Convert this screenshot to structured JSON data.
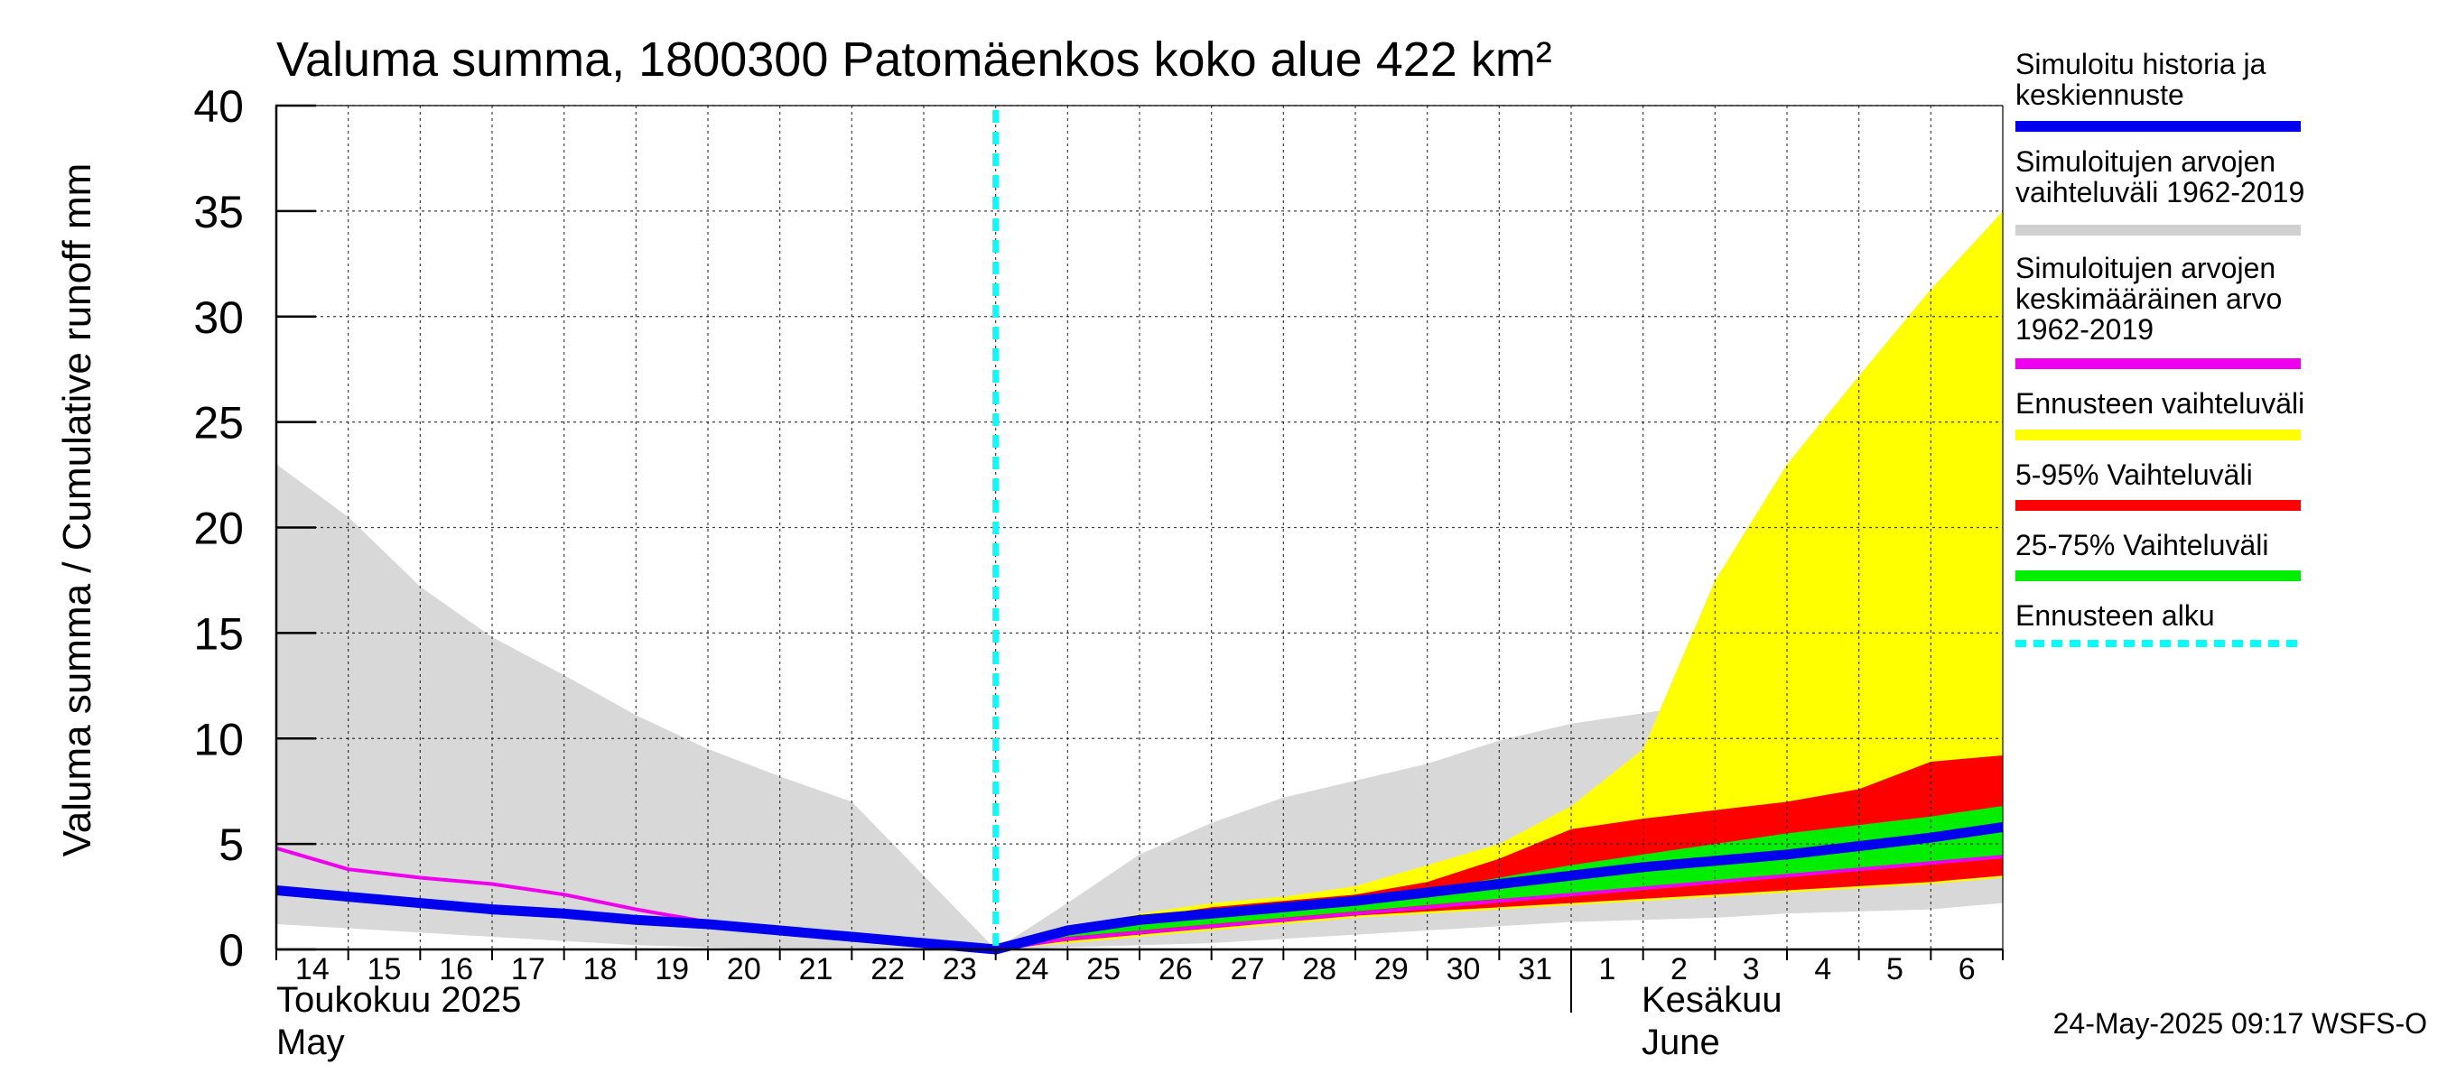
{
  "chart_data": {
    "type": "area",
    "title": "Valuma summa, 1800300 Patomäenkos koko alue 422 km²",
    "ylabel": "Valuma summa / Cumulative runoff    mm",
    "ylim": [
      0,
      40
    ],
    "yticks": [
      0,
      5,
      10,
      15,
      20,
      25,
      30,
      35,
      40
    ],
    "grid": true,
    "legend_position": "right",
    "x_tick_labels": [
      "14",
      "15",
      "16",
      "17",
      "18",
      "19",
      "20",
      "21",
      "22",
      "23",
      "24",
      "25",
      "26",
      "27",
      "28",
      "29",
      "30",
      "31",
      "1",
      "2",
      "3",
      "4",
      "5",
      "6"
    ],
    "month_labels": [
      {
        "fi": "Toukokuu  2025",
        "en": "May"
      },
      {
        "fi": "Kesäkuu",
        "en": "June"
      }
    ],
    "forecast_start_day": 10,
    "footer": "24-May-2025 09:17 WSFS-O",
    "legend": [
      {
        "label": "Simuloitu historia ja\nkeskiennuste",
        "color": "#0000ee",
        "style": "solid"
      },
      {
        "label": "Simuloitujen arvojen\nvaihteluväli 1962-2019",
        "color": "#d0d0d0",
        "style": "solid"
      },
      {
        "label": "Simuloitujen arvojen\nkeskimääräinen arvo\n   1962-2019",
        "color": "#ee00ee",
        "style": "solid"
      },
      {
        "label": "Ennusteen vaihteluväli",
        "color": "#ffff00",
        "style": "solid"
      },
      {
        "label": "5-95% Vaihteluväli",
        "color": "#ff0000",
        "style": "solid"
      },
      {
        "label": "25-75% Vaihteluväli",
        "color": "#00ee00",
        "style": "solid"
      },
      {
        "label": "Ennusteen alku",
        "color": "#00ffff",
        "style": "dashed"
      }
    ],
    "series": [
      {
        "name": "Simuloitujen arvojen vaihteluväli 1962-2019",
        "kind": "band",
        "color": "#d8d8d8",
        "x": [
          0,
          1,
          2,
          3,
          4,
          5,
          6,
          7,
          8,
          9,
          10,
          11,
          12,
          13,
          14,
          15,
          16,
          17,
          18,
          19,
          20,
          21,
          22,
          23,
          24
        ],
        "upper": [
          23,
          20.5,
          17.2,
          14.8,
          13,
          11.1,
          9.5,
          8.2,
          7,
          3.5,
          0,
          2.2,
          4.5,
          6,
          7.2,
          8,
          8.8,
          9.9,
          10.7,
          11.2,
          11.7,
          12.1,
          12.4,
          12.7,
          13
        ],
        "lower": [
          1.2,
          1,
          0.8,
          0.6,
          0.4,
          0.2,
          0.1,
          0,
          0,
          0,
          0,
          0.1,
          0.2,
          0.3,
          0.5,
          0.7,
          0.9,
          1.1,
          1.3,
          1.4,
          1.5,
          1.7,
          1.8,
          1.9,
          2.2
        ]
      },
      {
        "name": "Ennusteen vaihteluväli",
        "kind": "band",
        "color": "#ffff00",
        "x": [
          10,
          11,
          12,
          13,
          14,
          15,
          16,
          17,
          18,
          19,
          20,
          21,
          22,
          23,
          24
        ],
        "upper": [
          0,
          0.9,
          1.7,
          2.2,
          2.5,
          3,
          4,
          5,
          6.8,
          9.5,
          17.5,
          23,
          27.2,
          31.3,
          35
        ],
        "lower": [
          0,
          0.3,
          0.6,
          0.9,
          1.2,
          1.5,
          1.7,
          1.9,
          2.1,
          2.3,
          2.5,
          2.7,
          2.9,
          3.1,
          3.4
        ]
      },
      {
        "name": "5-95% Vaihteluväli",
        "kind": "band",
        "color": "#ff0000",
        "x": [
          10,
          11,
          12,
          13,
          14,
          15,
          16,
          17,
          18,
          19,
          20,
          21,
          22,
          23,
          24
        ],
        "upper": [
          0,
          0.8,
          1.5,
          2,
          2.3,
          2.6,
          3.2,
          4.3,
          5.7,
          6.2,
          6.6,
          7,
          7.6,
          8.9,
          9.2
        ],
        "lower": [
          0,
          0.4,
          0.7,
          1,
          1.3,
          1.6,
          1.8,
          2,
          2.2,
          2.4,
          2.6,
          2.8,
          3,
          3.2,
          3.5
        ]
      },
      {
        "name": "25-75% Vaihteluväli",
        "kind": "band",
        "color": "#00ee00",
        "x": [
          10,
          11,
          12,
          13,
          14,
          15,
          16,
          17,
          18,
          19,
          20,
          21,
          22,
          23,
          24
        ],
        "upper": [
          0,
          0.7,
          1.2,
          1.6,
          1.9,
          2.3,
          2.8,
          3.4,
          4,
          4.5,
          5,
          5.5,
          5.9,
          6.3,
          6.8
        ],
        "lower": [
          0,
          0.6,
          0.9,
          1.2,
          1.5,
          1.8,
          2.1,
          2.4,
          2.6,
          2.9,
          3.2,
          3.5,
          3.8,
          4.1,
          4.4
        ]
      },
      {
        "name": "Simuloitujen arvojen keskimääräinen arvo 1962-2019",
        "kind": "line",
        "color": "#ee00ee",
        "x": [
          0,
          1,
          2,
          3,
          4,
          5,
          6,
          7,
          8,
          9,
          10,
          11,
          12,
          13,
          14,
          15,
          16,
          17,
          18,
          19,
          20,
          21,
          22,
          23,
          24
        ],
        "y": [
          4.8,
          3.8,
          3.4,
          3.1,
          2.6,
          1.9,
          1.3,
          1,
          0.6,
          0.3,
          0,
          0.5,
          0.8,
          1.1,
          1.4,
          1.7,
          2,
          2.3,
          2.6,
          2.9,
          3.2,
          3.5,
          3.8,
          4.1,
          4.4
        ]
      },
      {
        "name": "Simuloitu historia ja keskiennuste",
        "kind": "line",
        "color": "#0000ee",
        "x": [
          0,
          1,
          2,
          3,
          4,
          5,
          6,
          7,
          8,
          9,
          10,
          11,
          12,
          13,
          14,
          15,
          16,
          17,
          18,
          19,
          20,
          21,
          22,
          23,
          24
        ],
        "y": [
          2.8,
          2.5,
          2.2,
          1.9,
          1.7,
          1.4,
          1.2,
          0.9,
          0.6,
          0.3,
          0,
          0.9,
          1.4,
          1.7,
          2,
          2.3,
          2.7,
          3.1,
          3.5,
          3.9,
          4.2,
          4.5,
          4.9,
          5.3,
          5.8
        ]
      }
    ]
  }
}
